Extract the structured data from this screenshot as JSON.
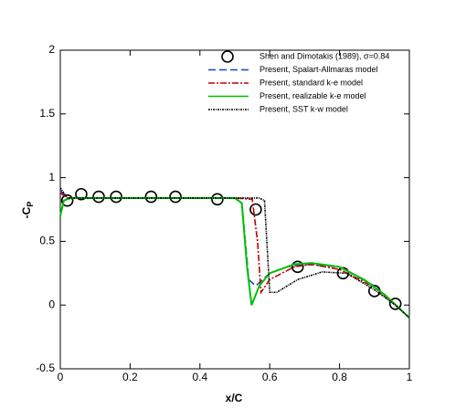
{
  "chart_data": {
    "type": "line",
    "xlabel": "x/C",
    "ylabel": {
      "main": "-C",
      "sub": "P"
    },
    "xlim": [
      0,
      1
    ],
    "ylim": [
      -0.5,
      2
    ],
    "xticks": [
      0,
      0.2,
      0.4,
      0.6,
      0.8,
      1
    ],
    "yticks": [
      -0.5,
      0,
      0.5,
      1,
      1.5,
      2
    ],
    "series": [
      {
        "name": "Shen and Dimotakis (1989), σ=0.84",
        "kind": "scatter",
        "color": "#000000",
        "x": [
          0.02,
          0.06,
          0.11,
          0.16,
          0.26,
          0.33,
          0.45,
          0.56,
          0.68,
          0.81,
          0.9,
          0.96
        ],
        "values": [
          0.82,
          0.87,
          0.85,
          0.85,
          0.85,
          0.85,
          0.83,
          0.75,
          0.3,
          0.25,
          0.11,
          0.01
        ]
      },
      {
        "name": "Present, Spalart-Allmaras model",
        "kind": "line",
        "style": "dashed",
        "color": "#1f3fcf",
        "x": [
          0,
          0.02,
          0.1,
          0.3,
          0.5,
          0.52,
          0.54,
          0.56,
          0.6,
          0.65,
          0.7,
          0.8,
          0.9,
          0.96,
          1
        ],
        "values": [
          0.9,
          0.84,
          0.84,
          0.84,
          0.84,
          0.8,
          0.2,
          0.15,
          0.25,
          0.3,
          0.32,
          0.3,
          0.15,
          0.0,
          -0.1
        ]
      },
      {
        "name": "Present, standard k-e model",
        "kind": "line",
        "style": "dashdot",
        "color": "#c00000",
        "x": [
          0,
          0.02,
          0.1,
          0.3,
          0.5,
          0.55,
          0.565,
          0.575,
          0.6,
          0.67,
          0.72,
          0.8,
          0.9,
          0.96,
          1
        ],
        "values": [
          0.88,
          0.84,
          0.84,
          0.84,
          0.84,
          0.83,
          0.5,
          0.1,
          0.2,
          0.3,
          0.32,
          0.28,
          0.14,
          0.0,
          -0.1
        ]
      },
      {
        "name": "Present, realizable k-e model",
        "kind": "line",
        "style": "solid",
        "color": "#00c000",
        "x": [
          0,
          0.01,
          0.03,
          0.1,
          0.3,
          0.5,
          0.52,
          0.535,
          0.548,
          0.57,
          0.6,
          0.67,
          0.72,
          0.8,
          0.87,
          0.93,
          1
        ],
        "values": [
          0.7,
          0.82,
          0.84,
          0.84,
          0.84,
          0.84,
          0.8,
          0.3,
          0.0,
          0.15,
          0.25,
          0.32,
          0.33,
          0.3,
          0.2,
          0.08,
          -0.1
        ]
      },
      {
        "name": "Present, SST k-w model",
        "kind": "line",
        "style": "dotted",
        "color": "#000000",
        "x": [
          0,
          0.02,
          0.1,
          0.3,
          0.5,
          0.57,
          0.585,
          0.6,
          0.62,
          0.68,
          0.75,
          0.82,
          0.9,
          0.96,
          1
        ],
        "values": [
          0.92,
          0.84,
          0.84,
          0.84,
          0.84,
          0.84,
          0.82,
          0.1,
          0.1,
          0.2,
          0.26,
          0.25,
          0.12,
          0.0,
          -0.1
        ]
      }
    ]
  }
}
